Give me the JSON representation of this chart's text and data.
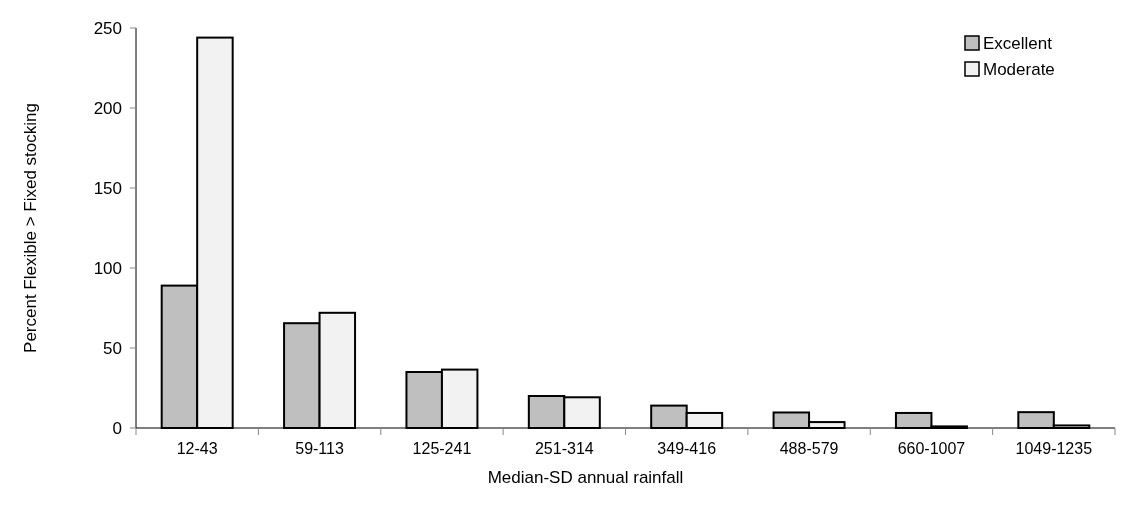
{
  "chart_data": {
    "type": "bar",
    "xlabel": "Median-SD annual rainfall",
    "ylabel": "Percent Flexible > Fixed stocking",
    "categories": [
      "12-43",
      "59-113",
      "125-241",
      "251-314",
      "349-416",
      "488-579",
      "660-1007",
      "1049-1235"
    ],
    "series": [
      {
        "name": "Excellent",
        "color": "#bfbfbf",
        "values": [
          89,
          65.5,
          35,
          20,
          14,
          9.7,
          9.4,
          9.9
        ]
      },
      {
        "name": "Moderate",
        "color": "#f2f2f2",
        "values": [
          244,
          72,
          36.5,
          19.2,
          9.4,
          3.7,
          1,
          1.6
        ]
      }
    ],
    "ylim": [
      0,
      250
    ],
    "yticks": [
      0,
      50,
      100,
      150,
      200,
      250
    ],
    "grid": false,
    "legend": "top right"
  }
}
